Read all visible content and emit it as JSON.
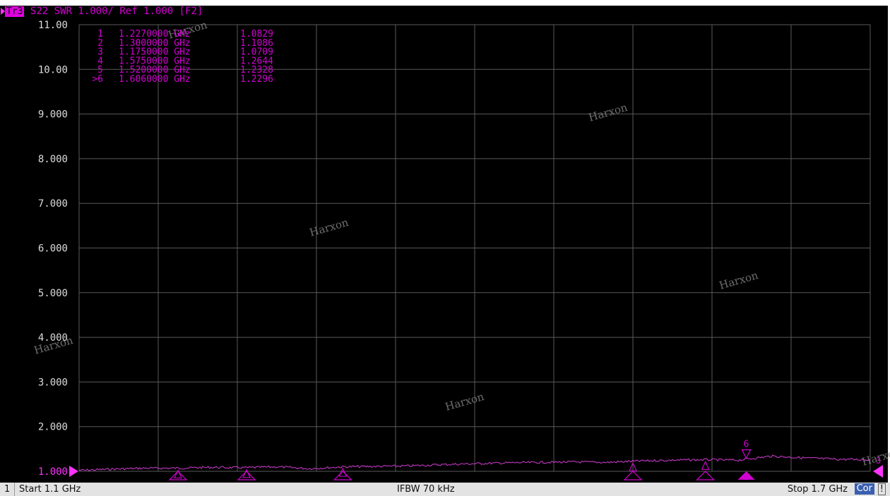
{
  "header": {
    "trace_id": "Tr3",
    "text": "S22  SWR 1.000/ Ref 1.000 [F2]"
  },
  "watermark": "Harxon",
  "colors": {
    "trace": "#d23cd2",
    "marker": "#d200d2",
    "grid": "#5a5a5a",
    "tick_label": "#dcdcdc",
    "reference": "#ff33ff"
  },
  "chart_data": {
    "type": "line",
    "title": "",
    "xlabel": "",
    "ylabel": "",
    "xlim": [
      1.1,
      1.7
    ],
    "ylim": [
      1.0,
      11.0
    ],
    "x_unit": "GHz",
    "y_tick_labels": [
      "11.00",
      "10.00",
      "9.000",
      "8.000",
      "7.000",
      "6.000",
      "5.000",
      "4.000",
      "3.000",
      "2.000",
      "1.000"
    ],
    "grid": true,
    "series": [
      {
        "x": [
          1.1,
          1.125,
          1.15,
          1.175,
          1.2,
          1.225,
          1.25,
          1.275,
          1.3,
          1.325,
          1.35,
          1.375,
          1.4,
          1.425,
          1.45,
          1.475,
          1.5,
          1.525,
          1.55,
          1.575,
          1.6,
          1.625,
          1.65,
          1.675,
          1.7
        ],
        "y": [
          1.02,
          1.05,
          1.07,
          1.07,
          1.09,
          1.08,
          1.1,
          1.06,
          1.1,
          1.11,
          1.12,
          1.15,
          1.17,
          1.19,
          1.2,
          1.21,
          1.2,
          1.23,
          1.25,
          1.26,
          1.25,
          1.34,
          1.3,
          1.27,
          1.26
        ]
      }
    ],
    "markers": [
      {
        "id": "1",
        "freq": "1.2270000 GHz",
        "value": "1.0829",
        "x": 1.227,
        "y": 1.0829,
        "active": false
      },
      {
        "id": "2",
        "freq": "1.3000000 GHz",
        "value": "1.1086",
        "x": 1.3,
        "y": 1.1086,
        "active": false
      },
      {
        "id": "3",
        "freq": "1.1750000 GHz",
        "value": "1.0709",
        "x": 1.175,
        "y": 1.0709,
        "active": false
      },
      {
        "id": "4",
        "freq": "1.5750000 GHz",
        "value": "1.2644",
        "x": 1.575,
        "y": 1.2644,
        "active": false
      },
      {
        "id": "5",
        "freq": "1.5200000 GHz",
        "value": "1.2328",
        "x": 1.52,
        "y": 1.2328,
        "active": false
      },
      {
        "id": ">6",
        "freq": "1.6060000 GHz",
        "value": "1.2296",
        "x": 1.606,
        "y": 1.2296,
        "active": true
      }
    ],
    "active_marker_label": "6"
  },
  "status": {
    "channel": "1",
    "start": "Start 1.1 GHz",
    "ifbw": "IFBW 70 kHz",
    "stop": "Stop 1.7 GHz",
    "cor": "Cor",
    "flag": "!"
  }
}
